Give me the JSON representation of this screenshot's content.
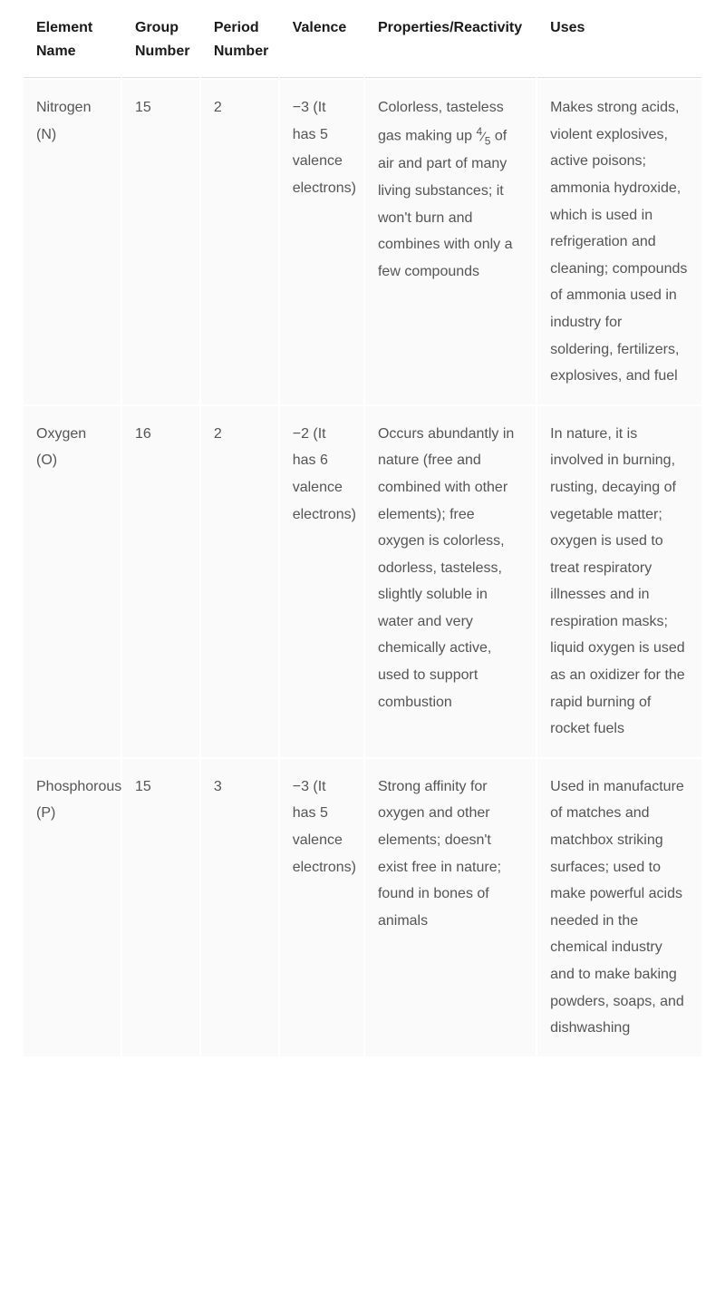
{
  "table": {
    "columns": [
      "Element Name",
      "Group Number",
      "Period Number",
      "Valence",
      "Properties/Reactivity",
      "Uses"
    ],
    "rows": [
      {
        "element": "Nitrogen (N)",
        "group": "15",
        "period": "2",
        "valence": "−3 (It has 5 valence electrons)",
        "properties_pre": "Colorless, tasteless gas making up ",
        "fraction_num": "4",
        "fraction_den": "5",
        "properties_post": " of air and part of many living substances; it won't burn and combines with only a few compounds",
        "uses": "Makes strong acids, violent explosives, active poisons; ammonia hydroxide, which is used in refrigeration and cleaning; compounds of ammonia used in industry for soldering, fertilizers, explosives, and fuel"
      },
      {
        "element": "Oxygen (O)",
        "group": "16",
        "period": "2",
        "valence": "−2 (It has 6 valence electrons)",
        "properties": "Occurs abundantly in nature (free and combined with other elements); free oxygen is colorless, odorless, tasteless, slightly soluble in water and very chemically active, used to support combustion",
        "uses": "In nature, it is involved in burning, rusting, decaying of vegetable matter; oxygen is used to treat respiratory illnesses and in respiration masks; liquid oxygen is used as an oxidizer for the rapid burning of rocket fuels"
      },
      {
        "element": "Phosphorous (P)",
        "group": "15",
        "period": "3",
        "valence": "−3 (It has 5 valence electrons)",
        "properties": "Strong affinity for oxygen and other elements; doesn't exist free in nature; found in bones of animals",
        "uses": "Used in manufacture of matches and matchbox striking surfaces; used to make powerful acids needed in the chemical industry and to make baking powders, soaps, and dishwashing"
      }
    ],
    "background_color": "#ffffff",
    "cell_background": "#fafafa",
    "header_text_color": "#1a1a1a",
    "body_text_color": "#555555",
    "border_color": "#e0e0e0",
    "header_fontsize": 16,
    "body_fontsize": 16
  }
}
